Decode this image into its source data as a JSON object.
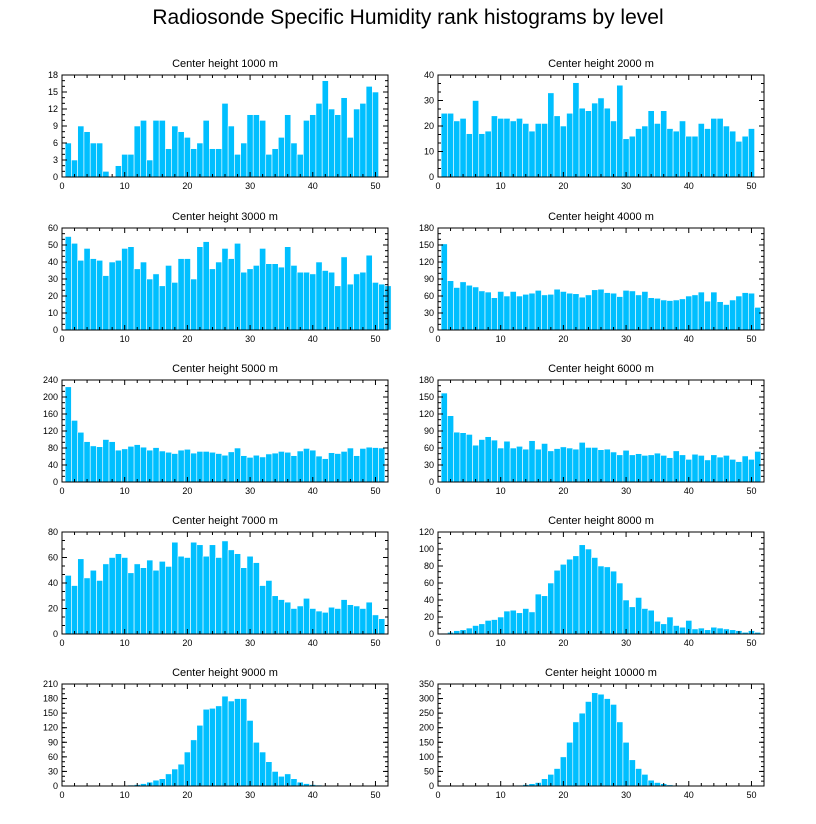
{
  "title": "Radiosonde Specific Humidity rank histograms by level",
  "colors": {
    "bar": "#00bfff",
    "axis": "#000000"
  },
  "chart_data": [
    {
      "type": "bar",
      "title": "Center height 1000 m",
      "xlim": [
        0,
        52
      ],
      "ylim": [
        0,
        18
      ],
      "yticks": [
        0,
        3,
        6,
        9,
        12,
        15,
        18
      ],
      "xticks": [
        0,
        10,
        20,
        30,
        40,
        50
      ],
      "values": [
        6,
        3,
        9,
        8,
        6,
        6,
        1,
        0,
        2,
        4,
        4,
        9,
        10,
        3,
        10,
        10,
        5,
        9,
        8,
        7,
        5,
        6,
        10,
        5,
        5,
        13,
        9,
        4,
        6,
        11,
        11,
        10,
        4,
        5,
        7,
        11,
        6,
        4,
        10,
        11,
        13,
        17,
        12,
        11,
        14,
        7,
        12,
        13,
        16,
        15
      ]
    },
    {
      "type": "bar",
      "title": "Center height 2000 m",
      "xlim": [
        0,
        52
      ],
      "ylim": [
        0,
        40
      ],
      "yticks": [
        0,
        10,
        20,
        30,
        40
      ],
      "xticks": [
        0,
        10,
        20,
        30,
        40,
        50
      ],
      "values": [
        25,
        25,
        22,
        23,
        17,
        30,
        17,
        18,
        24,
        23,
        23,
        22,
        23,
        21,
        18,
        21,
        21,
        33,
        24,
        20,
        25,
        37,
        27,
        26,
        29,
        31,
        27,
        22,
        36,
        15,
        16,
        19,
        20,
        26,
        21,
        26,
        19,
        18,
        22,
        16,
        16,
        21,
        19,
        23,
        23,
        20,
        18,
        14,
        16,
        19
      ]
    },
    {
      "type": "bar",
      "title": "Center height 3000 m",
      "xlim": [
        0,
        52
      ],
      "ylim": [
        0,
        60
      ],
      "yticks": [
        0,
        10,
        20,
        30,
        40,
        50,
        60
      ],
      "xticks": [
        0,
        10,
        20,
        30,
        40,
        50
      ],
      "values": [
        55,
        51,
        41,
        48,
        42,
        41,
        32,
        40,
        41,
        48,
        49,
        36,
        40,
        30,
        33,
        26,
        38,
        28,
        42,
        42,
        30,
        49,
        52,
        36,
        40,
        48,
        42,
        51,
        34,
        36,
        38,
        48,
        39,
        39,
        37,
        49,
        38,
        34,
        34,
        33,
        40,
        35,
        34,
        26,
        43,
        27,
        33,
        34,
        44,
        28,
        27,
        26
      ]
    },
    {
      "type": "bar",
      "title": "Center height 4000 m",
      "xlim": [
        0,
        52
      ],
      "ylim": [
        0,
        180
      ],
      "yticks": [
        0,
        30,
        60,
        90,
        120,
        150,
        180
      ],
      "xticks": [
        0,
        10,
        20,
        30,
        40,
        50
      ],
      "values": [
        152,
        87,
        75,
        85,
        79,
        76,
        69,
        67,
        57,
        68,
        60,
        68,
        60,
        63,
        65,
        70,
        62,
        63,
        72,
        68,
        65,
        64,
        58,
        62,
        71,
        72,
        66,
        65,
        59,
        70,
        69,
        62,
        68,
        57,
        56,
        53,
        52,
        53,
        55,
        60,
        62,
        67,
        51,
        67,
        50,
        45,
        53,
        60,
        66,
        65,
        40
      ]
    },
    {
      "type": "bar",
      "title": "Center height 5000 m",
      "xlim": [
        0,
        52
      ],
      "ylim": [
        0,
        240
      ],
      "yticks": [
        0,
        40,
        80,
        120,
        160,
        200,
        240
      ],
      "xticks": [
        0,
        10,
        20,
        30,
        40,
        50
      ],
      "values": [
        224,
        145,
        117,
        95,
        85,
        83,
        100,
        95,
        75,
        78,
        84,
        88,
        82,
        75,
        81,
        73,
        70,
        67,
        75,
        77,
        68,
        72,
        72,
        70,
        67,
        63,
        71,
        80,
        62,
        58,
        63,
        59,
        66,
        68,
        72,
        70,
        62,
        73,
        79,
        75,
        61,
        55,
        69,
        67,
        72,
        80,
        62,
        79,
        82,
        81,
        80
      ]
    },
    {
      "type": "bar",
      "title": "Center height 6000 m",
      "xlim": [
        0,
        52
      ],
      "ylim": [
        0,
        180
      ],
      "yticks": [
        0,
        30,
        60,
        90,
        120,
        150,
        180
      ],
      "xticks": [
        0,
        10,
        20,
        30,
        40,
        50
      ],
      "values": [
        157,
        117,
        88,
        87,
        84,
        65,
        75,
        80,
        74,
        60,
        72,
        60,
        63,
        58,
        73,
        58,
        68,
        55,
        59,
        62,
        60,
        58,
        70,
        61,
        61,
        57,
        58,
        53,
        48,
        56,
        48,
        50,
        47,
        48,
        51,
        47,
        43,
        55,
        48,
        40,
        49,
        47,
        39,
        48,
        44,
        47,
        40,
        36,
        46,
        40,
        54
      ]
    },
    {
      "type": "bar",
      "title": "Center height 7000 m",
      "xlim": [
        0,
        52
      ],
      "ylim": [
        0,
        80
      ],
      "yticks": [
        0,
        20,
        40,
        60,
        80
      ],
      "xticks": [
        0,
        10,
        20,
        30,
        40,
        50
      ],
      "values": [
        46,
        38,
        59,
        44,
        50,
        42,
        55,
        60,
        63,
        60,
        48,
        55,
        52,
        58,
        50,
        57,
        53,
        72,
        61,
        60,
        72,
        70,
        61,
        70,
        60,
        73,
        66,
        63,
        52,
        61,
        56,
        38,
        42,
        30,
        27,
        25,
        20,
        22,
        28,
        20,
        18,
        17,
        21,
        20,
        27,
        23,
        22,
        20,
        25,
        15,
        12
      ]
    },
    {
      "type": "bar",
      "title": "Center height 8000 m",
      "xlim": [
        0,
        52
      ],
      "ylim": [
        0,
        120
      ],
      "yticks": [
        0,
        20,
        40,
        60,
        80,
        100,
        120
      ],
      "xticks": [
        0,
        10,
        20,
        30,
        40,
        50
      ],
      "values": [
        1,
        2,
        4,
        5,
        7,
        10,
        12,
        16,
        17,
        20,
        27,
        28,
        25,
        30,
        26,
        47,
        45,
        60,
        75,
        82,
        88,
        92,
        105,
        100,
        90,
        80,
        79,
        74,
        60,
        40,
        32,
        43,
        30,
        28,
        15,
        12,
        20,
        10,
        8,
        16,
        6,
        7,
        5,
        8,
        7,
        6,
        5,
        4,
        2,
        4,
        2
      ]
    },
    {
      "type": "bar",
      "title": "Center height 9000 m",
      "xlim": [
        0,
        52
      ],
      "ylim": [
        0,
        210
      ],
      "yticks": [
        0,
        30,
        60,
        90,
        120,
        150,
        180,
        210
      ],
      "xticks": [
        0,
        10,
        20,
        30,
        40,
        50
      ],
      "values": [
        0,
        0,
        0,
        0,
        0,
        0,
        0,
        0,
        0,
        1,
        2,
        3,
        5,
        8,
        12,
        15,
        25,
        35,
        45,
        70,
        95,
        125,
        158,
        160,
        165,
        185,
        175,
        180,
        180,
        135,
        90,
        70,
        50,
        30,
        20,
        25,
        15,
        8,
        5,
        3,
        2,
        1,
        1,
        0,
        0,
        0,
        0,
        0,
        0,
        0,
        0
      ]
    },
    {
      "type": "bar",
      "title": "Center height 10000 m",
      "xlim": [
        0,
        52
      ],
      "ylim": [
        0,
        350
      ],
      "yticks": [
        0,
        50,
        100,
        150,
        200,
        250,
        300,
        350
      ],
      "xticks": [
        0,
        10,
        20,
        30,
        40,
        50
      ],
      "values": [
        0,
        0,
        0,
        0,
        0,
        0,
        0,
        0,
        0,
        1,
        1,
        2,
        3,
        5,
        8,
        12,
        25,
        40,
        60,
        100,
        150,
        220,
        250,
        290,
        320,
        315,
        300,
        280,
        220,
        150,
        90,
        60,
        40,
        20,
        12,
        8,
        4,
        3,
        2,
        1,
        1,
        0,
        0,
        0,
        0,
        0,
        0,
        0,
        0,
        0,
        0
      ]
    }
  ]
}
